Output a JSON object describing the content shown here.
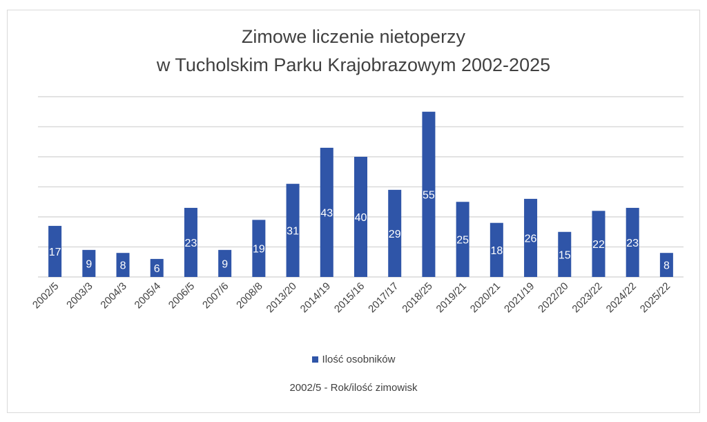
{
  "chart_data": {
    "type": "bar",
    "title_lines": [
      "Zimowe liczenie nietoperzy",
      "w Tucholskim Parku Krajobrazowym 2002-2025"
    ],
    "categories": [
      "2002/5",
      "2003/3",
      "2004/3",
      "2005/4",
      "2006/5",
      "2007/6",
      "2008/8",
      "2013/20",
      "2014/19",
      "2015/16",
      "2017/17",
      "2018/25",
      "2019/21",
      "2020/21",
      "2021/19",
      "2022/20",
      "2023/22",
      "2024/22",
      "2025/22"
    ],
    "series": [
      {
        "name": "Ilość osobników",
        "values": [
          17,
          9,
          8,
          6,
          23,
          9,
          19,
          31,
          43,
          40,
          29,
          55,
          25,
          18,
          26,
          15,
          22,
          23,
          8
        ],
        "color": "#2f55a8"
      }
    ],
    "data_label_color": "#ffffff",
    "gridline_color": "#d9d9d9",
    "ylim": [
      0,
      60
    ],
    "y_gridline_step": 10,
    "grid": true,
    "legend_position": "bottom",
    "footnote": "2002/5 - Rok/ilość zimowisk"
  }
}
